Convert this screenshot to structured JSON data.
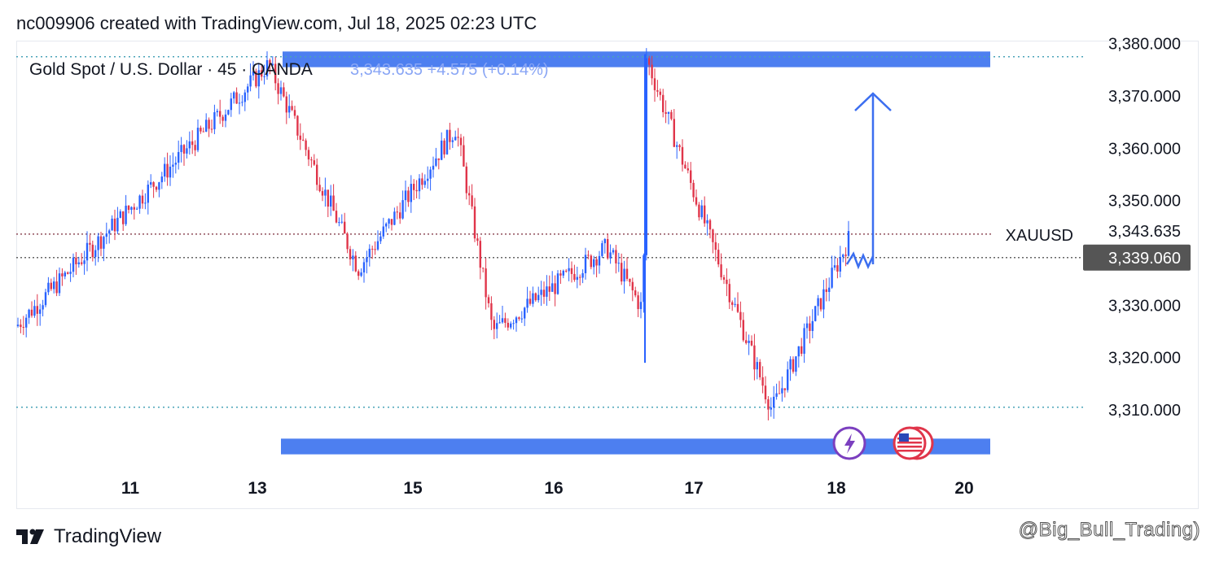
{
  "header": {
    "text": "nc009906 created with TradingView.com, Jul 18, 2025 02:23 UTC"
  },
  "footer": {
    "brand": "TradingView",
    "watermark": "@Big_Bull_Trading)"
  },
  "colors": {
    "up": "#2962ff",
    "down": "#e0354a",
    "zone": "#4d7ff0",
    "arrow": "#3b6ef0",
    "dotted_blue": "#4aa3b8",
    "price_tag_bg": "#555555"
  },
  "chart_data": {
    "type": "candlestick",
    "title": "Gold Spot / U.S. Dollar · 45 · OANDA",
    "quote": {
      "last": "3,343.635",
      "change": "+4.575 (+0.14%)"
    },
    "symbol_label": "XAUUSD",
    "current_price": "3,343.635",
    "ref_price": "3,339.060",
    "y_axis": {
      "ylim": [
        3305,
        3380
      ],
      "ticks": [
        3310,
        3320,
        3330,
        3340,
        3350,
        3360,
        3370,
        3380
      ],
      "tick_labels": [
        "3,310.000",
        "3,320.000",
        "3,330.000",
        "3,350.000",
        "3,360.000",
        "3,370.000",
        "3,380.000"
      ]
    },
    "x_axis": {
      "ticks": [
        "11",
        "13",
        "15",
        "16",
        "17",
        "18",
        "20"
      ]
    },
    "levels": {
      "resistance": 3377.5,
      "support": 3310.5,
      "last": 3343.6,
      "ref": 3339.1
    },
    "zones": [
      {
        "name": "resistance-zone",
        "from": 3375.5,
        "to": 3378.5
      },
      {
        "name": "support-zone",
        "from": 3301.5,
        "to": 3304.5
      }
    ],
    "key_points": [
      {
        "label": "start",
        "price": 3326
      },
      {
        "label": "swing-high",
        "price": 3376
      },
      {
        "label": "low",
        "price": 3337
      },
      {
        "label": "high",
        "price": 3364
      },
      {
        "label": "drop-low",
        "price": 3325
      },
      {
        "label": "recover",
        "price": 3341
      },
      {
        "label": "dip",
        "price": 3329
      },
      {
        "label": "spike",
        "price": 3378
      },
      {
        "label": "fall",
        "price": 3348
      },
      {
        "label": "low2",
        "price": 3310
      },
      {
        "label": "recovery",
        "price": 3343.6
      }
    ],
    "annotation": {
      "type": "projection-arrow",
      "from_price": 3339,
      "to_price": 3373
    }
  }
}
